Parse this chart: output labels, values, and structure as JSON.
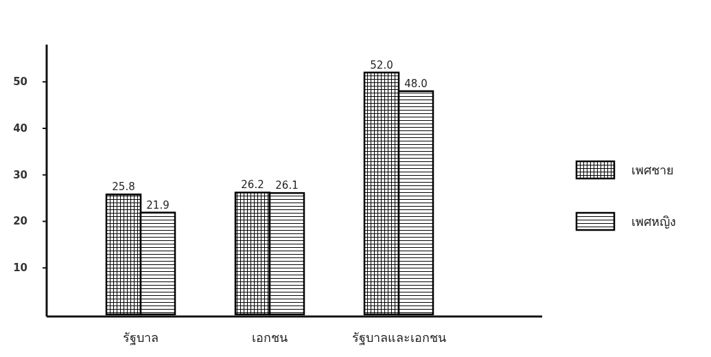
{
  "chart_data": {
    "type": "bar",
    "categories": [
      "รัฐบาล",
      "เอกชน",
      "รัฐบาลและเอกชน"
    ],
    "series": [
      {
        "name": "เพศชาย",
        "color": "#000000",
        "values": [
          25.8,
          26.2,
          52.0
        ],
        "value_labels": [
          "25.8",
          "26.2",
          "52.0"
        ]
      },
      {
        "name": "เพศหญิง",
        "color": "#000000",
        "values": [
          21.9,
          26.1,
          48.0
        ],
        "value_labels": [
          "21.9",
          "26.1",
          "48.0"
        ]
      }
    ],
    "ylim": [
      0,
      58
    ],
    "yticks": [
      10,
      20,
      30,
      40,
      50
    ],
    "grid": false,
    "legend": "right"
  }
}
